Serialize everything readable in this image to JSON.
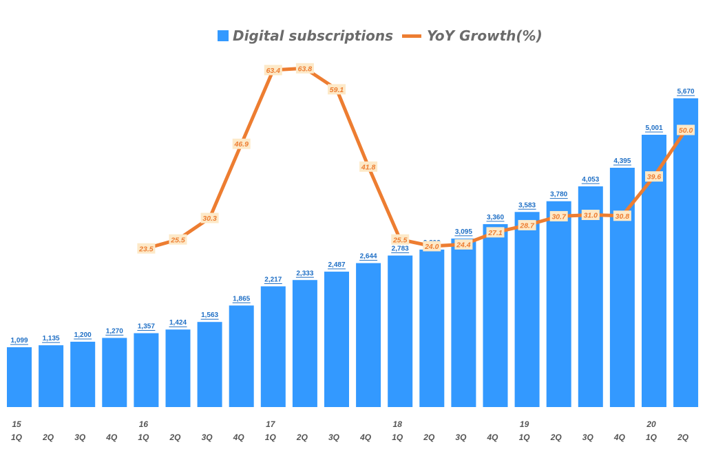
{
  "chart_data": {
    "type": "bar",
    "combo": "bar+line",
    "quarters": [
      "1Q",
      "2Q",
      "3Q",
      "4Q",
      "1Q",
      "2Q",
      "3Q",
      "4Q",
      "1Q",
      "2Q",
      "3Q",
      "4Q",
      "1Q",
      "2Q",
      "3Q",
      "4Q",
      "1Q",
      "2Q",
      "3Q",
      "4Q",
      "1Q",
      "2Q"
    ],
    "years": [
      "15",
      "",
      "",
      "",
      "16",
      "",
      "",
      "",
      "17",
      "",
      "",
      "",
      "18",
      "",
      "",
      "",
      "19",
      "",
      "",
      "",
      "20",
      ""
    ],
    "series": [
      {
        "name": "Digital subscriptions",
        "type": "bar",
        "color": "#3399ff",
        "values": [
          1099,
          1135,
          1200,
          1270,
          1357,
          1424,
          1563,
          1865,
          2217,
          2333,
          2487,
          2644,
          2783,
          2892,
          3095,
          3360,
          3583,
          3780,
          4053,
          4395,
          5001,
          5670
        ],
        "labels": [
          "1,099",
          "1,135",
          "1,200",
          "1,270",
          "1,357",
          "1,424",
          "1,563",
          "1,865",
          "2,217",
          "2,333",
          "2,487",
          "2,644",
          "2,783",
          "2,892",
          "3,095",
          "3,360",
          "3,583",
          "3,780",
          "4,053",
          "4,395",
          "5,001",
          "5,670"
        ]
      },
      {
        "name": "YoY Growth(%)",
        "type": "line",
        "color": "#ed7d31",
        "values": [
          null,
          null,
          null,
          null,
          23.5,
          25.5,
          30.3,
          46.9,
          63.4,
          63.8,
          59.1,
          41.8,
          25.5,
          24.0,
          24.4,
          27.1,
          28.7,
          30.7,
          31.0,
          30.8,
          39.6,
          50.0
        ],
        "labels": [
          "",
          "",
          "",
          "",
          "23.5",
          "25.5",
          "30.3",
          "46.9",
          "63.4",
          "63.8",
          "59.1",
          "41.8",
          "25.5",
          "24.0",
          "24.4",
          "27.1",
          "28.7",
          "30.7",
          "31.0",
          "30.8",
          "39.6",
          "50.0"
        ]
      }
    ],
    "legend_position": "top",
    "grid": false
  },
  "legend": {
    "bar_label": "Digital subscriptions",
    "line_label": "YoY Growth(%)"
  },
  "colors": {
    "bar": "#3399ff",
    "line": "#ed7d31",
    "bar_label_text": "#1f6fc5",
    "line_label_text": "#ed7d31",
    "line_label_bg": "#fde9c8",
    "axis_text": "#555555"
  }
}
